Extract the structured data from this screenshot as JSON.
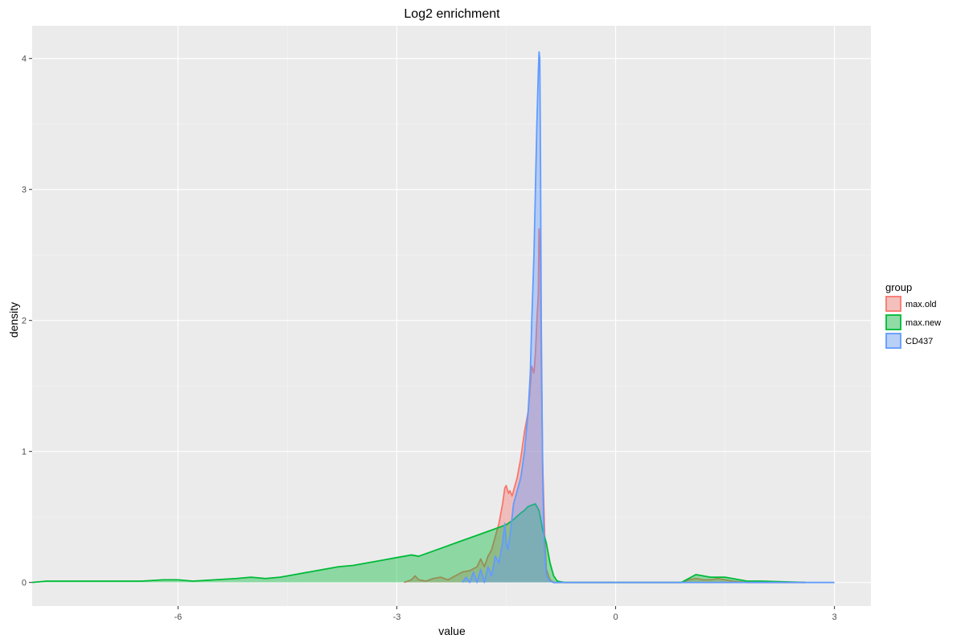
{
  "chart_data": {
    "type": "area",
    "title": "Log2 enrichment",
    "xlabel": "value",
    "ylabel": "density",
    "xlim": [
      -8.0,
      3.5
    ],
    "ylim": [
      -0.18,
      4.25
    ],
    "x_ticks": [
      -6,
      -3,
      0,
      3
    ],
    "x_tick_labels": [
      "-6",
      "-3",
      "0",
      "3"
    ],
    "y_ticks": [
      0,
      1,
      2,
      3,
      4
    ],
    "y_tick_labels": [
      "0",
      "1",
      "2",
      "3",
      "4"
    ],
    "grid": true,
    "legend": {
      "title": "group",
      "placement": "right"
    },
    "series": [
      {
        "name": "max.old",
        "color": "#F8766D",
        "points": [
          [
            -2.9,
            0
          ],
          [
            -2.8,
            0.02
          ],
          [
            -2.75,
            0.05
          ],
          [
            -2.7,
            0.02
          ],
          [
            -2.6,
            0.01
          ],
          [
            -2.5,
            0.03
          ],
          [
            -2.4,
            0.04
          ],
          [
            -2.3,
            0.02
          ],
          [
            -2.2,
            0.05
          ],
          [
            -2.1,
            0.08
          ],
          [
            -2.0,
            0.09
          ],
          [
            -1.9,
            0.12
          ],
          [
            -1.85,
            0.18
          ],
          [
            -1.8,
            0.12
          ],
          [
            -1.75,
            0.2
          ],
          [
            -1.7,
            0.25
          ],
          [
            -1.65,
            0.35
          ],
          [
            -1.6,
            0.45
          ],
          [
            -1.55,
            0.6
          ],
          [
            -1.52,
            0.72
          ],
          [
            -1.5,
            0.74
          ],
          [
            -1.47,
            0.68
          ],
          [
            -1.45,
            0.7
          ],
          [
            -1.42,
            0.66
          ],
          [
            -1.4,
            0.7
          ],
          [
            -1.35,
            0.8
          ],
          [
            -1.3,
            0.95
          ],
          [
            -1.25,
            1.15
          ],
          [
            -1.2,
            1.3
          ],
          [
            -1.17,
            1.5
          ],
          [
            -1.15,
            1.65
          ],
          [
            -1.12,
            1.6
          ],
          [
            -1.1,
            1.75
          ],
          [
            -1.08,
            2.0
          ],
          [
            -1.06,
            2.2
          ],
          [
            -1.05,
            2.7
          ],
          [
            -1.03,
            2.45
          ],
          [
            -1.02,
            1.7
          ],
          [
            -1.0,
            0.9
          ],
          [
            -0.97,
            0.3
          ],
          [
            -0.95,
            0.1
          ],
          [
            -0.9,
            0.02
          ],
          [
            -0.85,
            0
          ],
          [
            0.9,
            0
          ],
          [
            1.0,
            0.02
          ],
          [
            1.1,
            0.03
          ],
          [
            1.2,
            0.02
          ],
          [
            1.3,
            0.02
          ],
          [
            1.4,
            0.03
          ],
          [
            1.5,
            0.02
          ],
          [
            1.6,
            0.01
          ],
          [
            1.8,
            0
          ],
          [
            2.6,
            0
          ]
        ]
      },
      {
        "name": "max.new",
        "color": "#00BA38",
        "points": [
          [
            -8.0,
            0
          ],
          [
            -7.8,
            0.01
          ],
          [
            -7.0,
            0.01
          ],
          [
            -6.5,
            0.01
          ],
          [
            -6.2,
            0.02
          ],
          [
            -6.0,
            0.02
          ],
          [
            -5.8,
            0.01
          ],
          [
            -5.5,
            0.02
          ],
          [
            -5.2,
            0.03
          ],
          [
            -5.0,
            0.04
          ],
          [
            -4.8,
            0.03
          ],
          [
            -4.6,
            0.04
          ],
          [
            -4.4,
            0.06
          ],
          [
            -4.2,
            0.08
          ],
          [
            -4.0,
            0.1
          ],
          [
            -3.8,
            0.12
          ],
          [
            -3.6,
            0.13
          ],
          [
            -3.4,
            0.15
          ],
          [
            -3.2,
            0.17
          ],
          [
            -3.0,
            0.19
          ],
          [
            -2.8,
            0.21
          ],
          [
            -2.7,
            0.2
          ],
          [
            -2.6,
            0.22
          ],
          [
            -2.4,
            0.26
          ],
          [
            -2.2,
            0.3
          ],
          [
            -2.0,
            0.34
          ],
          [
            -1.8,
            0.38
          ],
          [
            -1.6,
            0.42
          ],
          [
            -1.5,
            0.44
          ],
          [
            -1.4,
            0.48
          ],
          [
            -1.3,
            0.53
          ],
          [
            -1.25,
            0.55
          ],
          [
            -1.2,
            0.58
          ],
          [
            -1.1,
            0.6
          ],
          [
            -1.05,
            0.55
          ],
          [
            -1.0,
            0.4
          ],
          [
            -0.95,
            0.3
          ],
          [
            -0.9,
            0.15
          ],
          [
            -0.85,
            0.05
          ],
          [
            -0.8,
            0.01
          ],
          [
            -0.7,
            0
          ],
          [
            0.9,
            0
          ],
          [
            1.0,
            0.03
          ],
          [
            1.1,
            0.06
          ],
          [
            1.2,
            0.05
          ],
          [
            1.3,
            0.04
          ],
          [
            1.5,
            0.04
          ],
          [
            1.6,
            0.03
          ],
          [
            1.8,
            0.01
          ],
          [
            2.0,
            0.01
          ],
          [
            2.6,
            0
          ]
        ]
      },
      {
        "name": "CD437",
        "color": "#619CFF",
        "points": [
          [
            -2.1,
            0
          ],
          [
            -2.05,
            0.04
          ],
          [
            -2.0,
            0
          ],
          [
            -1.95,
            0.08
          ],
          [
            -1.9,
            0
          ],
          [
            -1.85,
            0.1
          ],
          [
            -1.8,
            0
          ],
          [
            -1.75,
            0.12
          ],
          [
            -1.7,
            0.05
          ],
          [
            -1.65,
            0.2
          ],
          [
            -1.6,
            0.15
          ],
          [
            -1.55,
            0.3
          ],
          [
            -1.52,
            0.45
          ],
          [
            -1.5,
            0.3
          ],
          [
            -1.48,
            0.25
          ],
          [
            -1.45,
            0.35
          ],
          [
            -1.42,
            0.5
          ],
          [
            -1.4,
            0.6
          ],
          [
            -1.35,
            0.7
          ],
          [
            -1.3,
            0.8
          ],
          [
            -1.25,
            1.0
          ],
          [
            -1.2,
            1.3
          ],
          [
            -1.17,
            1.6
          ],
          [
            -1.15,
            2.0
          ],
          [
            -1.12,
            2.5
          ],
          [
            -1.1,
            3.0
          ],
          [
            -1.08,
            3.5
          ],
          [
            -1.06,
            3.9
          ],
          [
            -1.05,
            4.05
          ],
          [
            -1.04,
            4.0
          ],
          [
            -1.03,
            3.2
          ],
          [
            -1.02,
            2.0
          ],
          [
            -1.0,
            0.8
          ],
          [
            -0.98,
            0.3
          ],
          [
            -0.95,
            0.05
          ],
          [
            -0.9,
            0.01
          ],
          [
            -0.85,
            0
          ],
          [
            3.0,
            0
          ]
        ]
      }
    ]
  }
}
